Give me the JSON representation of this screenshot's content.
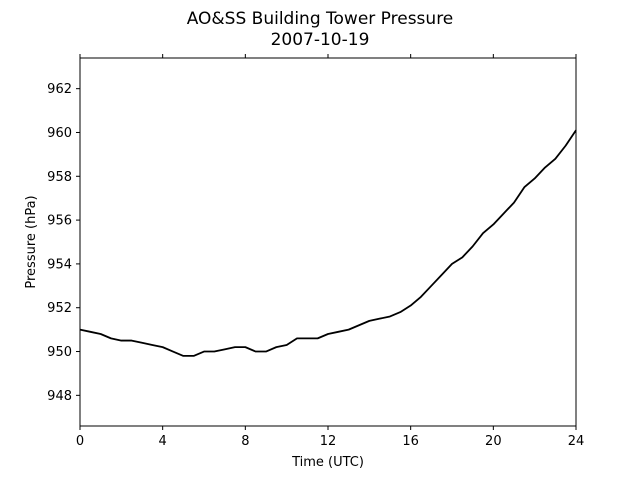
{
  "chart_data": {
    "type": "line",
    "title": "AO&SS Building Tower Pressure",
    "subtitle": "2007-10-19",
    "xlabel": "Time (UTC)",
    "ylabel": "Pressure (hPa)",
    "xlim": [
      0,
      24
    ],
    "ylim": [
      946.6,
      963.4
    ],
    "xticks": [
      0,
      4,
      8,
      12,
      16,
      20,
      24
    ],
    "yticks": [
      948,
      950,
      952,
      954,
      956,
      958,
      960,
      962
    ],
    "grid": false,
    "legend": "none",
    "line_color": "#000000",
    "series": [
      {
        "x": [
          0,
          0.5,
          1,
          1.5,
          2,
          2.5,
          3,
          3.5,
          4,
          4.5,
          5,
          5.5,
          6,
          6.5,
          7,
          7.5,
          8,
          8.5,
          9,
          9.5,
          10,
          10.5,
          11,
          11.5,
          12,
          12.5,
          13,
          13.5,
          14,
          14.5,
          15,
          15.5,
          16,
          16.5,
          17,
          17.5,
          18,
          18.5,
          19,
          19.5,
          20,
          20.5,
          21,
          21.5,
          22,
          22.5,
          23,
          23.5,
          24
        ],
        "y": [
          951.0,
          950.9,
          950.8,
          950.6,
          950.5,
          950.5,
          950.4,
          950.3,
          950.2,
          950.0,
          949.8,
          949.8,
          950.0,
          950.0,
          950.1,
          950.2,
          950.2,
          950.0,
          950.0,
          950.2,
          950.3,
          950.6,
          950.6,
          950.6,
          950.8,
          950.9,
          951.0,
          951.2,
          951.4,
          951.5,
          951.6,
          951.8,
          952.1,
          952.5,
          953.0,
          953.5,
          954.0,
          954.3,
          954.8,
          955.4,
          955.8,
          956.3,
          956.8,
          957.5,
          957.9,
          958.4,
          958.8,
          959.4,
          960.1
        ]
      }
    ]
  }
}
